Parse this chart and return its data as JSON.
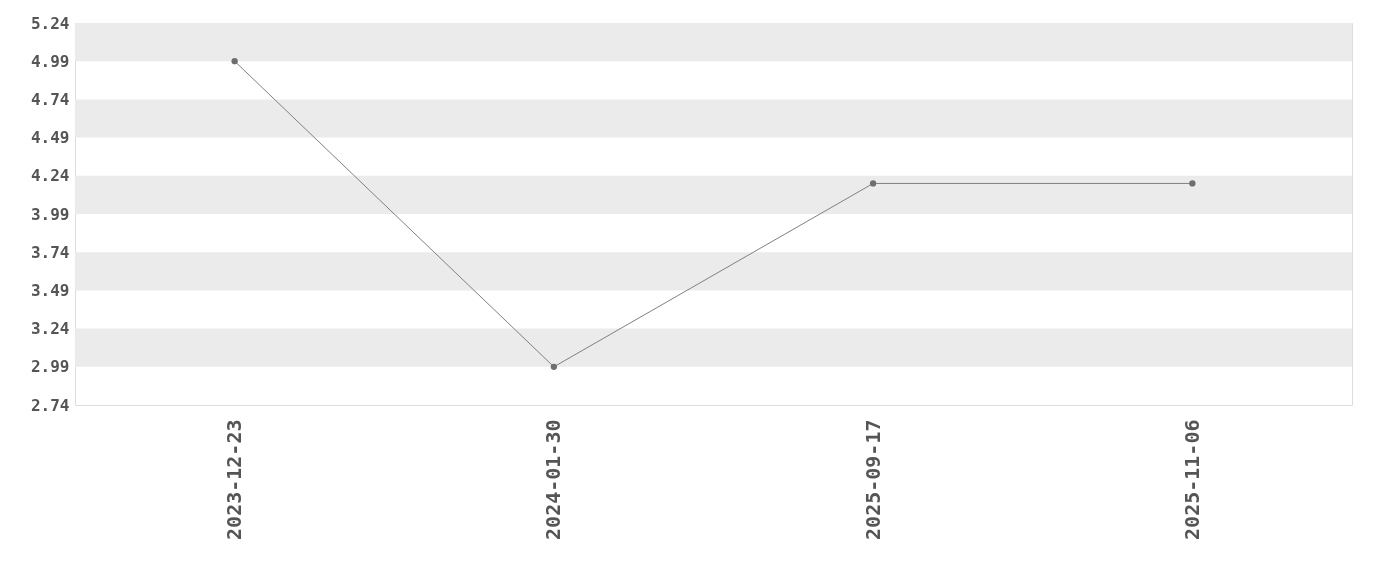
{
  "chart_data": {
    "type": "line",
    "categories": [
      "2023-12-23",
      "2024-01-30",
      "2025-09-17",
      "2025-11-06"
    ],
    "series": [
      {
        "color": "#808080",
        "values": [
          4.99,
          2.99,
          4.19,
          4.19
        ]
      }
    ],
    "ylim": [
      2.74,
      5.24
    ],
    "yticks": [
      2.74,
      2.99,
      3.24,
      3.49,
      3.74,
      3.99,
      4.24,
      4.49,
      4.74,
      4.99,
      5.24
    ],
    "bands": [
      {
        "axis": "y",
        "from": 4.99,
        "to": 5.24,
        "color": "#ebebeb"
      },
      {
        "axis": "y",
        "from": 4.49,
        "to": 4.74,
        "color": "#ebebeb"
      },
      {
        "axis": "y",
        "from": 3.99,
        "to": 4.24,
        "color": "#ebebeb"
      },
      {
        "axis": "y",
        "from": 3.49,
        "to": 3.74,
        "color": "#ebebeb"
      },
      {
        "axis": "y",
        "from": 2.99,
        "to": 3.24,
        "color": "#ebebeb"
      }
    ],
    "grid": false,
    "marker": "circle",
    "line_style": "solid"
  }
}
